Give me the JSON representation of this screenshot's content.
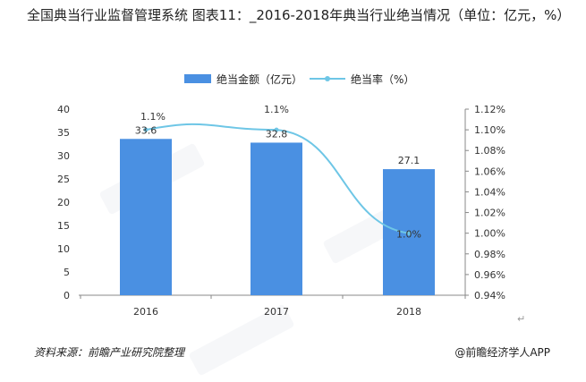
{
  "title": "全国典当行业监督管理系统 图表11：_2016-2018年典当行业绝当情况（单位：亿元，%）",
  "chart_data": {
    "type": "bar",
    "categories": [
      "2016",
      "2017",
      "2018"
    ],
    "series": [
      {
        "name": "绝当金额（亿元）",
        "type": "bar",
        "axis": "left",
        "values": [
          33.6,
          32.8,
          27.1
        ],
        "color": "#4a90e2"
      },
      {
        "name": "绝当率（%）",
        "type": "line",
        "axis": "right",
        "values": [
          1.1,
          1.1,
          1.0
        ],
        "labels": [
          "1.1%",
          "1.1%",
          "1.0%"
        ],
        "color": "#6ec6e6"
      }
    ],
    "y_left": {
      "min": 0,
      "max": 40,
      "ticks": [
        "0",
        "5",
        "10",
        "15",
        "20",
        "25",
        "30",
        "35",
        "40"
      ]
    },
    "y_right": {
      "min": 0.94,
      "max": 1.12,
      "ticks": [
        "0.94%",
        "0.96%",
        "0.98%",
        "1.00%",
        "1.02%",
        "1.04%",
        "1.06%",
        "1.08%",
        "1.10%",
        "1.12%"
      ]
    },
    "legend_position": "top",
    "grid": false
  },
  "footer": {
    "source": "资料来源：前瞻产业研究院整理",
    "brand": "@前瞻经济学人APP",
    "return_mark": "↵"
  }
}
